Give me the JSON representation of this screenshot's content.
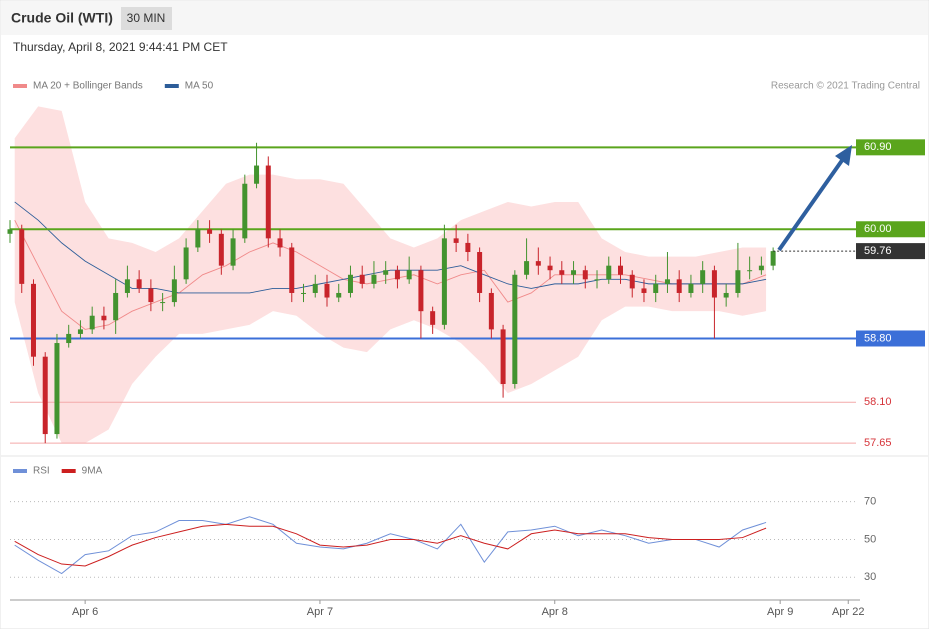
{
  "chart_data": [
    {
      "type": "candlestick",
      "title": "Crude Oil (WTI)",
      "subtitle": "30 MIN",
      "date": "Thursday, April 8, 2021 9:44:41 PM CET",
      "source": "Research © 2021 Trading Central",
      "xlim": [
        -0.32,
        3.3
      ],
      "ylim": [
        57.52,
        61.42
      ],
      "up_color": "#43932f",
      "down_color": "#c8242b",
      "x": [
        -0.32,
        -0.27,
        -0.22,
        -0.17,
        -0.12,
        -0.07,
        -0.02,
        0.03,
        0.08,
        0.13,
        0.18,
        0.23,
        0.28,
        0.33,
        0.38,
        0.43,
        0.48,
        0.53,
        0.58,
        0.63,
        0.68,
        0.73,
        0.78,
        0.83,
        0.88,
        0.93,
        0.98,
        1.03,
        1.08,
        1.13,
        1.18,
        1.23,
        1.28,
        1.33,
        1.38,
        1.43,
        1.48,
        1.53,
        1.58,
        1.63,
        1.68,
        1.73,
        1.78,
        1.83,
        1.88,
        1.93,
        1.98,
        2.03,
        2.08,
        2.13,
        2.18,
        2.23,
        2.28,
        2.33,
        2.38,
        2.43,
        2.48,
        2.53,
        2.58,
        2.63,
        2.68,
        2.73,
        2.78,
        2.83,
        2.88,
        2.93
      ],
      "open": [
        59.95,
        60.0,
        59.4,
        58.6,
        57.75,
        58.75,
        58.85,
        58.9,
        59.05,
        59.0,
        59.3,
        59.45,
        59.35,
        59.2,
        59.2,
        59.45,
        59.8,
        60.0,
        59.95,
        59.6,
        59.9,
        60.5,
        60.7,
        59.9,
        59.8,
        59.3,
        59.3,
        59.4,
        59.25,
        59.3,
        59.5,
        59.4,
        59.5,
        59.55,
        59.45,
        59.55,
        59.1,
        58.95,
        59.9,
        59.85,
        59.75,
        59.3,
        58.9,
        58.3,
        59.5,
        59.65,
        59.6,
        59.55,
        59.5,
        59.55,
        59.45,
        59.45,
        59.6,
        59.5,
        59.35,
        59.3,
        59.4,
        59.45,
        59.3,
        59.4,
        59.55,
        59.25,
        59.3,
        59.55,
        59.55,
        59.6
      ],
      "high": [
        60.1,
        60.05,
        59.45,
        58.65,
        58.85,
        58.95,
        59.0,
        59.15,
        59.15,
        59.45,
        59.6,
        59.55,
        59.45,
        59.3,
        59.6,
        59.9,
        60.1,
        60.1,
        60.0,
        60.0,
        60.6,
        60.95,
        60.8,
        60.0,
        59.85,
        59.4,
        59.5,
        59.5,
        59.4,
        59.6,
        59.6,
        59.65,
        59.65,
        59.6,
        59.7,
        59.6,
        59.15,
        60.05,
        60.05,
        59.95,
        59.8,
        59.35,
        58.95,
        59.55,
        59.9,
        59.8,
        59.7,
        59.65,
        59.65,
        59.6,
        59.55,
        59.7,
        59.7,
        59.55,
        59.45,
        59.5,
        59.75,
        59.55,
        59.5,
        59.65,
        59.6,
        59.4,
        59.85,
        59.7,
        59.7,
        59.8
      ],
      "low": [
        59.85,
        59.3,
        58.5,
        57.65,
        57.7,
        58.7,
        58.8,
        58.85,
        58.9,
        58.85,
        59.25,
        59.3,
        59.1,
        59.1,
        59.15,
        59.4,
        59.75,
        59.85,
        59.5,
        59.55,
        59.85,
        60.45,
        59.8,
        59.7,
        59.2,
        59.2,
        59.25,
        59.15,
        59.2,
        59.25,
        59.35,
        59.35,
        59.4,
        59.35,
        59.4,
        58.8,
        58.85,
        58.9,
        59.75,
        59.65,
        59.2,
        58.8,
        58.15,
        58.25,
        59.45,
        59.5,
        59.45,
        59.4,
        59.4,
        59.35,
        59.35,
        59.4,
        59.4,
        59.25,
        59.2,
        59.2,
        59.3,
        59.2,
        59.25,
        59.3,
        58.8,
        59.15,
        59.25,
        59.45,
        59.5,
        59.55
      ],
      "close": [
        60.0,
        59.4,
        58.6,
        57.75,
        58.75,
        58.85,
        58.9,
        59.05,
        59.0,
        59.3,
        59.45,
        59.35,
        59.2,
        59.2,
        59.45,
        59.8,
        60.0,
        59.95,
        59.6,
        59.9,
        60.5,
        60.7,
        59.9,
        59.8,
        59.3,
        59.3,
        59.4,
        59.25,
        59.3,
        59.5,
        59.4,
        59.5,
        59.55,
        59.45,
        59.55,
        59.1,
        58.95,
        59.9,
        59.85,
        59.75,
        59.3,
        58.9,
        58.3,
        59.5,
        59.65,
        59.6,
        59.55,
        59.5,
        59.55,
        59.45,
        59.45,
        59.6,
        59.5,
        59.35,
        59.3,
        59.4,
        59.45,
        59.3,
        59.4,
        59.55,
        59.25,
        59.3,
        59.55,
        59.55,
        59.6,
        59.76
      ],
      "series": [
        {
          "name": "MA 20 + Bollinger Bands",
          "color": "#f08a8a",
          "band_color": "#fde0e0",
          "x": [
            -0.3,
            -0.2,
            -0.1,
            0,
            0.1,
            0.2,
            0.3,
            0.4,
            0.5,
            0.6,
            0.7,
            0.8,
            0.9,
            1.0,
            1.1,
            1.2,
            1.3,
            1.4,
            1.5,
            1.6,
            1.7,
            1.8,
            1.9,
            2.0,
            2.1,
            2.2,
            2.3,
            2.4,
            2.5,
            2.6,
            2.7,
            2.8,
            2.9
          ],
          "values": [
            60.1,
            59.6,
            59.1,
            58.9,
            58.95,
            59.1,
            59.2,
            59.3,
            59.5,
            59.6,
            59.75,
            59.85,
            59.75,
            59.6,
            59.45,
            59.4,
            59.45,
            59.5,
            59.4,
            59.5,
            59.55,
            59.2,
            59.3,
            59.5,
            59.5,
            59.5,
            59.5,
            59.45,
            59.4,
            59.4,
            59.4,
            59.4,
            59.5
          ],
          "upper": [
            61.0,
            61.35,
            61.3,
            60.3,
            59.9,
            59.85,
            59.75,
            59.9,
            60.2,
            60.5,
            60.6,
            60.6,
            60.55,
            60.55,
            60.5,
            60.2,
            59.9,
            59.8,
            59.9,
            60.1,
            60.2,
            60.3,
            60.25,
            60.3,
            60.3,
            59.9,
            59.75,
            59.7,
            59.7,
            59.7,
            59.75,
            59.8,
            59.8
          ],
          "lower": [
            59.2,
            58.2,
            57.65,
            57.65,
            57.8,
            58.3,
            58.6,
            58.85,
            58.85,
            58.9,
            58.95,
            59.1,
            59.05,
            58.85,
            58.7,
            58.65,
            58.9,
            59.0,
            58.9,
            58.75,
            58.5,
            58.2,
            58.3,
            58.45,
            58.6,
            59.0,
            59.15,
            59.15,
            59.1,
            59.1,
            59.1,
            59.05,
            59.1
          ]
        },
        {
          "name": "MA 50",
          "color": "#2d5d99",
          "x": [
            -0.3,
            -0.2,
            -0.1,
            0,
            0.1,
            0.2,
            0.3,
            0.4,
            0.5,
            0.6,
            0.7,
            0.8,
            0.9,
            1.0,
            1.1,
            1.2,
            1.3,
            1.4,
            1.5,
            1.6,
            1.7,
            1.8,
            1.9,
            2.0,
            2.1,
            2.2,
            2.3,
            2.4,
            2.5,
            2.6,
            2.7,
            2.8,
            2.9
          ],
          "values": [
            60.3,
            60.1,
            59.85,
            59.65,
            59.5,
            59.35,
            59.35,
            59.3,
            59.3,
            59.3,
            59.3,
            59.35,
            59.35,
            59.4,
            59.45,
            59.5,
            59.55,
            59.55,
            59.55,
            59.6,
            59.5,
            59.4,
            59.35,
            59.4,
            59.4,
            59.45,
            59.45,
            59.4,
            59.4,
            59.4,
            59.4,
            59.4,
            59.45
          ]
        }
      ],
      "levels": [
        {
          "value": 60.9,
          "label": "60.90"
        },
        {
          "value": 60.0,
          "label": "60.00"
        },
        {
          "value": 58.8,
          "label": "58.80"
        },
        {
          "value": 58.1,
          "label": "58.10"
        },
        57.65
      ],
      "level_colors": [
        "#5aa51c",
        "#5aa51c",
        "#3b6fd8",
        "#f4a9a9",
        "#f4a9a9"
      ],
      "level_label_boxed": [
        true,
        true,
        true,
        false,
        false
      ],
      "level_text_color": "#d6343a",
      "current": 59.76,
      "current_color": "#333333"
    },
    {
      "type": "line",
      "xlim": [
        -0.32,
        3.3
      ],
      "ylim": [
        18,
        92
      ],
      "yticks": [
        30,
        50,
        70
      ],
      "grid": true,
      "xticks": [
        {
          "value": 0,
          "label": "Apr 6"
        },
        {
          "value": 1,
          "label": "Apr 7"
        },
        {
          "value": 2,
          "label": "Apr 8"
        },
        {
          "value": 2.96,
          "label": "Apr 9"
        },
        {
          "value": 3.25,
          "label": "Apr 22"
        }
      ],
      "series": [
        {
          "name": "RSI",
          "color": "#6f90d8",
          "x": [
            -0.3,
            -0.2,
            -0.1,
            0,
            0.1,
            0.2,
            0.3,
            0.4,
            0.5,
            0.6,
            0.7,
            0.8,
            0.9,
            1.0,
            1.1,
            1.2,
            1.3,
            1.4,
            1.5,
            1.6,
            1.7,
            1.8,
            1.9,
            2.0,
            2.1,
            2.2,
            2.3,
            2.4,
            2.5,
            2.6,
            2.7,
            2.8,
            2.9
          ],
          "values": [
            47,
            39,
            32,
            42,
            44,
            52,
            54,
            60,
            60,
            58,
            62,
            58,
            48,
            46,
            45,
            48,
            53,
            50,
            45,
            58,
            38,
            54,
            55,
            57,
            52,
            55,
            52,
            48,
            50,
            50,
            46,
            55,
            59
          ]
        },
        {
          "name": "9MA",
          "color": "#cc1f1f",
          "x": [
            -0.3,
            -0.2,
            -0.1,
            0,
            0.1,
            0.2,
            0.3,
            0.4,
            0.5,
            0.6,
            0.7,
            0.8,
            0.9,
            1.0,
            1.1,
            1.2,
            1.3,
            1.4,
            1.5,
            1.6,
            1.7,
            1.8,
            1.9,
            2.0,
            2.1,
            2.2,
            2.3,
            2.4,
            2.5,
            2.6,
            2.7,
            2.8,
            2.9
          ],
          "values": [
            49,
            42,
            37,
            36,
            41,
            47,
            51,
            54,
            57,
            58,
            57,
            57,
            53,
            47,
            46,
            47,
            50,
            50,
            48,
            52,
            48,
            45,
            53,
            55,
            53,
            53,
            53,
            51,
            50,
            50,
            50,
            51,
            56
          ]
        }
      ]
    }
  ]
}
